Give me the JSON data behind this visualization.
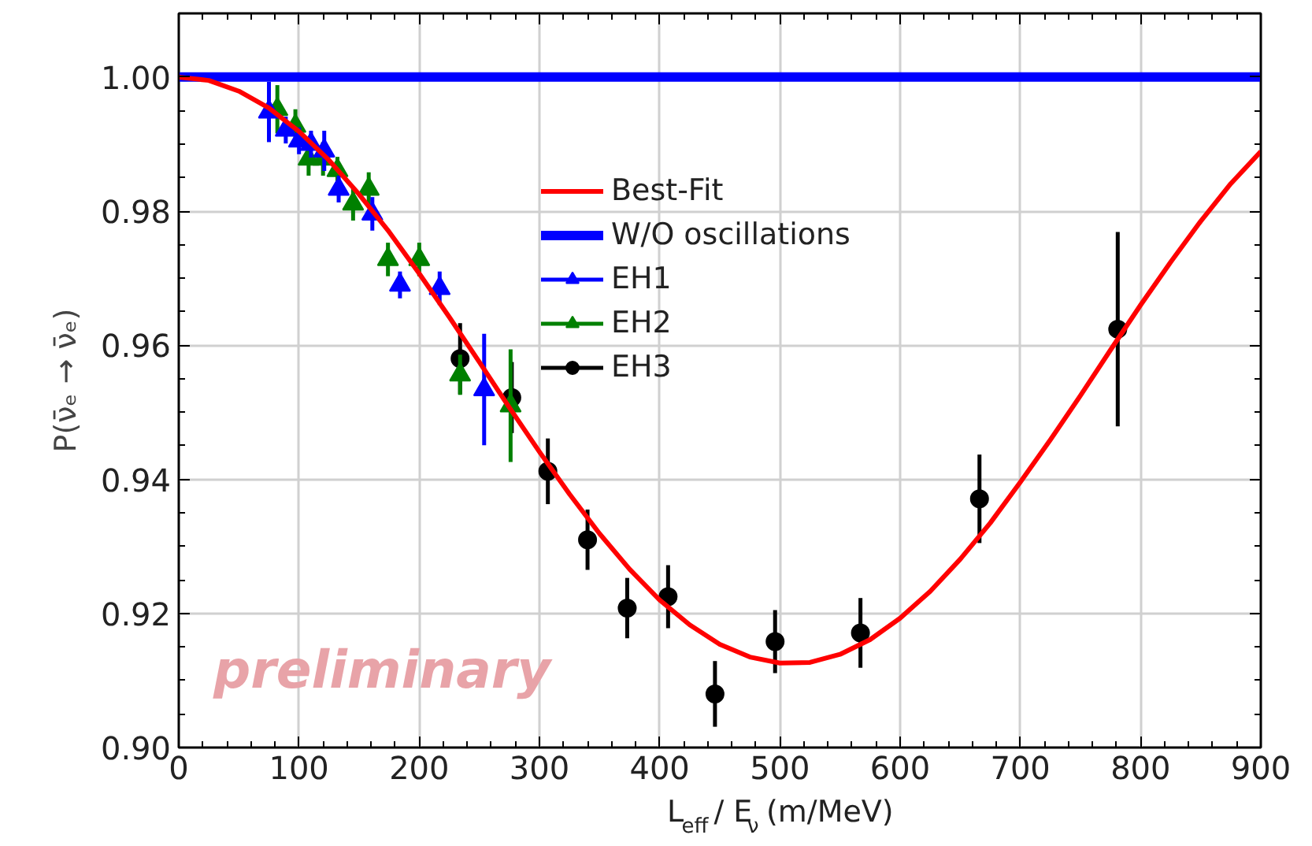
{
  "chart_data": {
    "type": "line",
    "xlabel": "L$_{eff}$ / E$_{ν}$ (m/MeV)",
    "ylabel": "P(ν̄ₑ → ν̄ₑ)",
    "xlim": [
      0,
      900
    ],
    "ylim": [
      0.9,
      1.0095
    ],
    "xticks": [
      0,
      100,
      200,
      300,
      400,
      500,
      600,
      700,
      800,
      900
    ],
    "yticks": [
      {
        "value": 0.9,
        "label": "0.90"
      },
      0.92,
      0.94,
      0.96,
      0.98,
      {
        "value": 1.0,
        "label": "1.00"
      }
    ],
    "grid": true,
    "legend": "top",
    "annotations": [
      "preliminary"
    ],
    "series": [
      {
        "name": "Best-Fit",
        "color": "#ff0000",
        "marker": "none",
        "x": [
          0,
          25,
          50,
          75,
          100,
          125,
          150,
          175,
          200,
          225,
          250,
          275,
          300,
          325,
          350,
          375,
          400,
          425,
          450,
          475,
          500,
          525,
          550,
          575,
          600,
          625,
          650,
          675,
          700,
          725,
          750,
          775,
          800,
          825,
          850,
          875,
          900
        ],
        "values": [
          1.0,
          0.9995,
          0.9979,
          0.9954,
          0.9919,
          0.9876,
          0.9825,
          0.9769,
          0.9707,
          0.9642,
          0.9575,
          0.9507,
          0.9441,
          0.9378,
          0.9319,
          0.9266,
          0.922,
          0.9183,
          0.9154,
          0.9135,
          0.9126,
          0.9127,
          0.9139,
          0.9161,
          0.9193,
          0.9233,
          0.9281,
          0.9335,
          0.9396,
          0.9459,
          0.9525,
          0.9593,
          0.966,
          0.9724,
          0.9785,
          0.9841,
          0.9889
        ]
      },
      {
        "name": "W/O oscillations",
        "color": "#0000ff",
        "marker": "none",
        "x": [
          0,
          900
        ],
        "values": [
          1.0,
          1.0
        ]
      },
      {
        "name": "EH1",
        "type": "scatter",
        "color": "#0000ff",
        "marker": "triangle",
        "x": [
          75,
          89,
          100,
          110,
          121,
          133,
          161,
          184,
          217,
          254
        ],
        "values": [
          0.9948,
          0.9921,
          0.9905,
          0.99,
          0.989,
          0.9833,
          0.9796,
          0.969,
          0.9685,
          0.9534
        ],
        "errors": [
          0.0045,
          0.002,
          0.002,
          0.002,
          0.003,
          0.002,
          0.0025,
          0.002,
          0.0025,
          0.0083
        ]
      },
      {
        "name": "EH2",
        "type": "scatter",
        "color": "#008000",
        "marker": "triangle",
        "x": [
          82,
          97,
          108,
          120,
          132,
          145,
          158,
          174,
          200,
          234,
          276
        ],
        "values": [
          0.9952,
          0.9927,
          0.9878,
          0.9878,
          0.9861,
          0.9811,
          0.9833,
          0.9728,
          0.9728,
          0.9556,
          0.951
        ],
        "errors": [
          0.0036,
          0.0025,
          0.0025,
          0.0025,
          0.002,
          0.0025,
          0.0025,
          0.0025,
          0.0025,
          0.003,
          0.0084
        ]
      },
      {
        "name": "EH3",
        "type": "scatter",
        "color": "#000000",
        "marker": "circle",
        "x": [
          234,
          277,
          307,
          340,
          373,
          407,
          446,
          496,
          567,
          666,
          781
        ],
        "values": [
          0.958,
          0.9522,
          0.9412,
          0.931,
          0.9208,
          0.9225,
          0.908,
          0.9158,
          0.9171,
          0.9371,
          0.9624
        ],
        "errors": [
          0.0053,
          0.0053,
          0.0049,
          0.0045,
          0.0045,
          0.0047,
          0.0049,
          0.0047,
          0.0052,
          0.0066,
          0.0145
        ]
      }
    ]
  }
}
